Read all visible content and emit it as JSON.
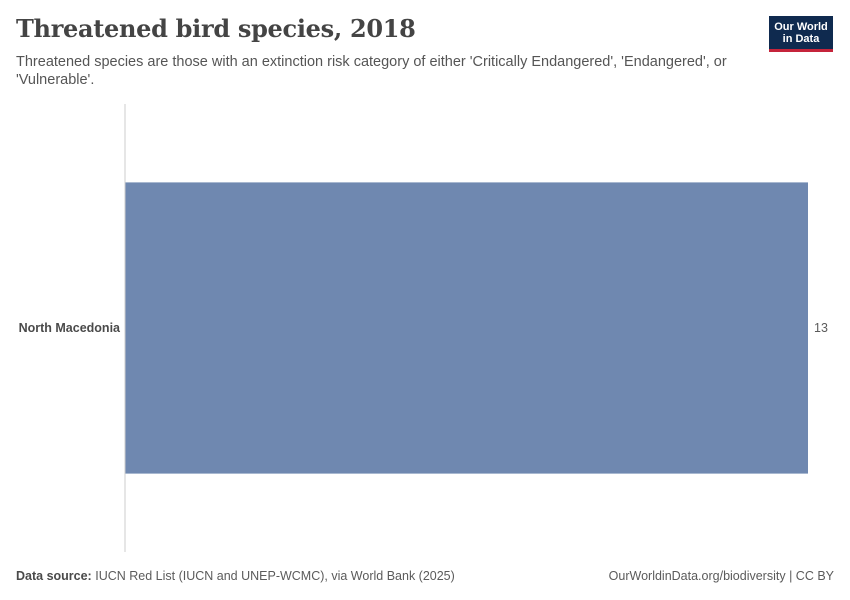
{
  "header": {
    "title": "Threatened bird species, 2018",
    "subtitle": "Threatened species are those with an extinction risk category of either 'Critically Endangered', 'Endangered', or 'Vulnerable'."
  },
  "logo": {
    "line1": "Our World",
    "line2": "in Data"
  },
  "footer": {
    "source_label": "Data source:",
    "source_text": "IUCN Red List (IUCN and UNEP-WCMC), via World Bank (2025)",
    "attribution": "OurWorldinData.org/biodiversity | CC BY"
  },
  "chart_data": {
    "type": "bar",
    "orientation": "horizontal",
    "categories": [
      "North Macedonia"
    ],
    "values": [
      13
    ],
    "value_labels": [
      "13"
    ],
    "xlim": [
      0,
      13
    ],
    "grid": false,
    "bar_color": "#6f88b0",
    "axis_color": "#cccccc"
  }
}
